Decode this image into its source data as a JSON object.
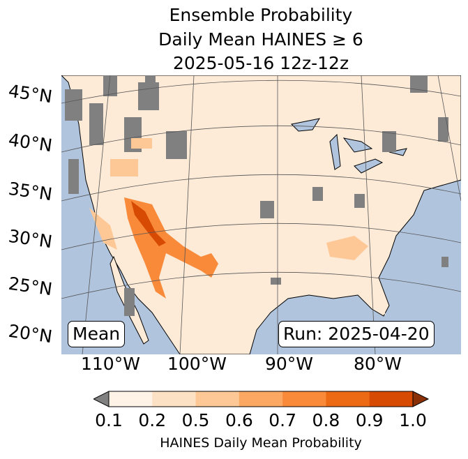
{
  "title": {
    "line1": "Ensemble Probability",
    "line2": "Daily Mean HAINES ≥ 6",
    "line3": "2025-05-16 12z-12z"
  },
  "lat_labels": [
    "45°N",
    "40°N",
    "35°N",
    "30°N",
    "25°N",
    "20°N"
  ],
  "lon_labels": [
    "110°W",
    "100°W",
    "90°W",
    "80°W"
  ],
  "mean_label": "Mean",
  "run_label": "Run: 2025-04-20",
  "colorbar": {
    "ticks": [
      "0.1",
      "0.2",
      "0.5",
      "0.6",
      "0.7",
      "0.8",
      "0.9",
      "1.0"
    ],
    "label": "HAINES Daily Mean Probability",
    "colors": [
      "#fff3e7",
      "#fde1c5",
      "#fdc895",
      "#fca862",
      "#f98a3a",
      "#ec6a14",
      "#d74a04",
      "#8a3006"
    ],
    "under_color": "#808080",
    "ocean_color": "#b0c4de"
  }
}
